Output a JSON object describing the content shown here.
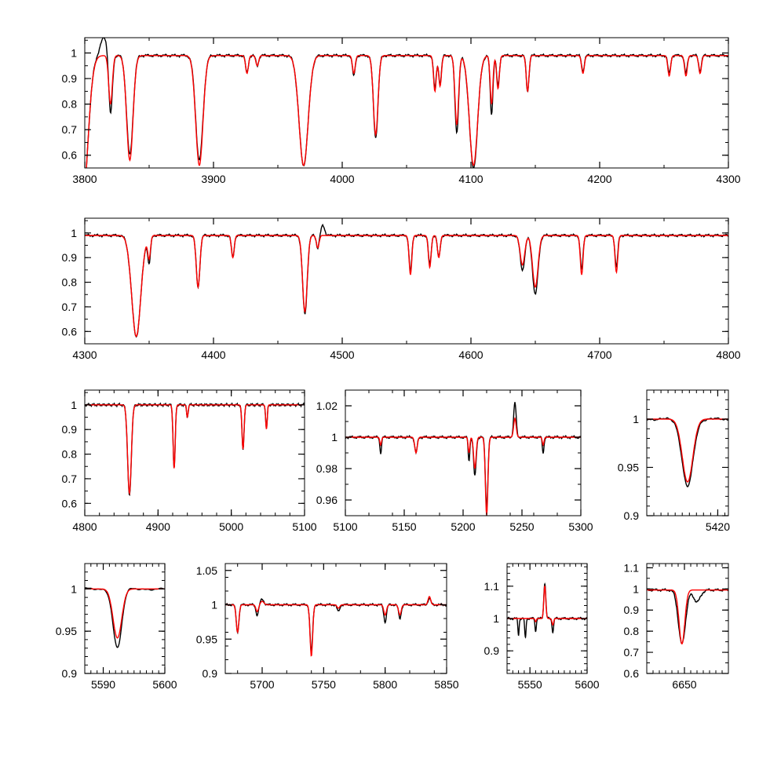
{
  "figure": {
    "observed_color": "#000000",
    "model_color": "#ff0000",
    "frame_color": "#000000",
    "background": "#ffffff"
  },
  "chart_data": [
    {
      "type": "line",
      "xlim": [
        3800,
        4300
      ],
      "ylim": [
        0.55,
        1.06
      ],
      "xticks": [
        3800,
        3900,
        4000,
        4100,
        4200,
        4300
      ],
      "xtick_labels": [
        "3800",
        "3900",
        "4000",
        "4100",
        "4200",
        "4300"
      ],
      "yticks": [
        0.6,
        0.7,
        0.8,
        0.9,
        1
      ],
      "ytick_labels": [
        "0.6",
        "0.7",
        "0.8",
        "0.9",
        "1"
      ],
      "continuum": 0.99,
      "lines": [
        [
          3798,
          0.4,
          6
        ],
        [
          3820,
          0.75,
          2
        ],
        [
          3835,
          0.6,
          3.5
        ],
        [
          3889,
          0.58,
          4
        ],
        [
          3926,
          0.92,
          1.5
        ],
        [
          3934,
          0.95,
          1.5
        ],
        [
          3970,
          0.56,
          5
        ],
        [
          4009,
          0.91,
          1.5
        ],
        [
          4026,
          0.67,
          2.5
        ],
        [
          4072,
          0.86,
          1.5
        ],
        [
          4076,
          0.88,
          1.5
        ],
        [
          4089,
          0.69,
          2
        ],
        [
          4102,
          0.55,
          4.5
        ],
        [
          4116,
          0.76,
          1.5
        ],
        [
          4121,
          0.87,
          1.5
        ],
        [
          4144,
          0.85,
          1.5
        ],
        [
          4187,
          0.93,
          1.5
        ],
        [
          4254,
          0.92,
          1.5
        ],
        [
          4267,
          0.92,
          1.5
        ],
        [
          4278,
          0.93,
          1.5
        ]
      ],
      "emission": [
        [
          3815,
          1.06,
          4
        ]
      ],
      "model_lines": [
        [
          3798,
          0.4,
          6
        ],
        [
          3820,
          0.8,
          2
        ],
        [
          3835,
          0.58,
          3.5
        ],
        [
          3889,
          0.56,
          4
        ],
        [
          3926,
          0.92,
          1.5
        ],
        [
          3934,
          0.95,
          1.5
        ],
        [
          3970,
          0.56,
          5
        ],
        [
          4009,
          0.92,
          1.5
        ],
        [
          4026,
          0.68,
          2.5
        ],
        [
          4072,
          0.85,
          1.5
        ],
        [
          4076,
          0.87,
          1.5
        ],
        [
          4089,
          0.72,
          2
        ],
        [
          4102,
          0.56,
          4.5
        ],
        [
          4116,
          0.8,
          1.5
        ],
        [
          4121,
          0.86,
          1.5
        ],
        [
          4144,
          0.85,
          1.5
        ],
        [
          4187,
          0.92,
          1.5
        ],
        [
          4254,
          0.91,
          1.5
        ],
        [
          4267,
          0.91,
          1.5
        ],
        [
          4278,
          0.92,
          1.5
        ]
      ],
      "model_emission": []
    },
    {
      "type": "line",
      "xlim": [
        4300,
        4800
      ],
      "ylim": [
        0.55,
        1.06
      ],
      "xticks": [
        4300,
        4400,
        4500,
        4600,
        4700,
        4800
      ],
      "xtick_labels": [
        "4300",
        "4400",
        "4500",
        "4600",
        "4700",
        "4800"
      ],
      "yticks": [
        0.6,
        0.7,
        0.8,
        0.9,
        1
      ],
      "ytick_labels": [
        "0.6",
        "0.7",
        "0.8",
        "0.9",
        "1"
      ],
      "continuum": 0.99,
      "lines": [
        [
          4340,
          0.58,
          5
        ],
        [
          4350,
          0.88,
          1.5
        ],
        [
          4388,
          0.78,
          2
        ],
        [
          4415,
          0.9,
          1.5
        ],
        [
          4471,
          0.67,
          2.5
        ],
        [
          4481,
          0.94,
          1.5
        ],
        [
          4553,
          0.84,
          1.5
        ],
        [
          4568,
          0.87,
          1.5
        ],
        [
          4575,
          0.9,
          1.5
        ],
        [
          4640,
          0.85,
          2.5
        ],
        [
          4650,
          0.75,
          3
        ],
        [
          4686,
          0.85,
          1.5
        ],
        [
          4713,
          0.86,
          1.5
        ]
      ],
      "emission": [
        [
          4485,
          1.03,
          2
        ]
      ],
      "model_lines": [
        [
          4340,
          0.58,
          5
        ],
        [
          4350,
          0.9,
          1.5
        ],
        [
          4388,
          0.78,
          2
        ],
        [
          4415,
          0.9,
          1.5
        ],
        [
          4471,
          0.68,
          2.5
        ],
        [
          4481,
          0.94,
          1.5
        ],
        [
          4553,
          0.83,
          1.5
        ],
        [
          4568,
          0.86,
          1.5
        ],
        [
          4575,
          0.9,
          1.5
        ],
        [
          4640,
          0.87,
          2.5
        ],
        [
          4650,
          0.78,
          3
        ],
        [
          4686,
          0.83,
          1.5
        ],
        [
          4713,
          0.84,
          1.5
        ]
      ],
      "model_emission": []
    },
    {
      "type": "line",
      "xlim": [
        4800,
        5100
      ],
      "ylim": [
        0.55,
        1.06
      ],
      "xticks": [
        4800,
        4900,
        5000,
        5100
      ],
      "xtick_labels": [
        "4800",
        "4900",
        "5000",
        "5100"
      ],
      "yticks": [
        0.6,
        0.7,
        0.8,
        0.9,
        1
      ],
      "ytick_labels": [
        "0.6",
        "0.7",
        "0.8",
        "0.9",
        "1"
      ],
      "continuum": 1.0,
      "lines": [
        [
          4861,
          0.63,
          3.5
        ],
        [
          4922,
          0.74,
          2
        ],
        [
          4940,
          0.95,
          1.5
        ],
        [
          5016,
          0.82,
          2
        ],
        [
          5048,
          0.9,
          1.5
        ]
      ],
      "emission": [],
      "model_lines": [
        [
          4861,
          0.64,
          3.5
        ],
        [
          4922,
          0.74,
          2
        ],
        [
          4940,
          0.95,
          1.5
        ],
        [
          5016,
          0.82,
          2
        ],
        [
          5048,
          0.9,
          1.5
        ]
      ],
      "model_emission": []
    },
    {
      "type": "line",
      "xlim": [
        5100,
        5300
      ],
      "ylim": [
        0.95,
        1.03
      ],
      "xticks": [
        5100,
        5150,
        5200,
        5250,
        5300
      ],
      "xtick_labels": [
        "5100",
        "5150",
        "5200",
        "5250",
        "5300"
      ],
      "yticks": [
        0.96,
        0.98,
        1,
        1.02
      ],
      "ytick_labels": [
        "0.96",
        "0.98",
        "1",
        "1.02"
      ],
      "continuum": 1.0,
      "lines": [
        [
          5130,
          0.99,
          1
        ],
        [
          5160,
          0.99,
          1.5
        ],
        [
          5205,
          0.985,
          1
        ],
        [
          5210,
          0.975,
          1.5
        ],
        [
          5220,
          0.955,
          1.5
        ],
        [
          5268,
          0.99,
          1
        ]
      ],
      "emission": [
        [
          5244,
          1.022,
          1.5
        ]
      ],
      "model_lines": [
        [
          5130,
          0.995,
          1
        ],
        [
          5160,
          0.99,
          1.5
        ],
        [
          5205,
          0.99,
          1
        ],
        [
          5210,
          0.98,
          1.5
        ],
        [
          5220,
          0.95,
          1.5
        ],
        [
          5268,
          0.995,
          1
        ]
      ],
      "model_emission": [
        [
          5244,
          1.012,
          1.5
        ]
      ]
    },
    {
      "type": "line",
      "xlim": [
        5400,
        5423
      ],
      "ylim": [
        0.9,
        1.03
      ],
      "xticks": [
        5420
      ],
      "xtick_labels": [
        "5420"
      ],
      "yticks": [
        0.9,
        0.95,
        1
      ],
      "ytick_labels": [
        "0.9",
        "0.95",
        "1"
      ],
      "continuum": 1.0,
      "lines": [
        [
          5411.5,
          0.93,
          2.2
        ]
      ],
      "emission": [],
      "model_lines": [
        [
          5411.5,
          0.935,
          2.1
        ]
      ],
      "model_emission": []
    },
    {
      "type": "line",
      "xlim": [
        5587,
        5600
      ],
      "ylim": [
        0.9,
        1.03
      ],
      "xticks": [
        5590,
        5600
      ],
      "xtick_labels": [
        "5590",
        "5600"
      ],
      "yticks": [
        0.9,
        0.95,
        1
      ],
      "ytick_labels": [
        "0.9",
        "0.95",
        "1"
      ],
      "continuum": 1.0,
      "lines": [
        [
          5592.3,
          0.93,
          1.0
        ]
      ],
      "emission": [],
      "model_lines": [
        [
          5592.3,
          0.942,
          1.0
        ]
      ],
      "model_emission": []
    },
    {
      "type": "line",
      "xlim": [
        5670,
        5850
      ],
      "ylim": [
        0.9,
        1.06
      ],
      "xticks": [
        5700,
        5750,
        5800,
        5850
      ],
      "xtick_labels": [
        "5700",
        "5750",
        "5800",
        "5850"
      ],
      "yticks": [
        0.9,
        0.95,
        1,
        1.05
      ],
      "ytick_labels": [
        "0.9",
        "0.95",
        "1",
        "1.05"
      ],
      "continuum": 1.0,
      "lines": [
        [
          5680,
          0.96,
          1.5
        ],
        [
          5696,
          0.985,
          1.5
        ],
        [
          5740,
          0.93,
          1.5
        ],
        [
          5762,
          0.99,
          1.5
        ],
        [
          5800,
          0.975,
          1.5
        ],
        [
          5812,
          0.98,
          1.5
        ]
      ],
      "emission": [
        [
          5836,
          1.01,
          1.5
        ],
        [
          5700,
          1.008,
          2
        ]
      ],
      "model_lines": [
        [
          5680,
          0.96,
          1.5
        ],
        [
          5696,
          0.99,
          1.5
        ],
        [
          5740,
          0.925,
          1.5
        ],
        [
          5762,
          0.995,
          1.5
        ],
        [
          5800,
          0.985,
          1.5
        ],
        [
          5812,
          0.985,
          1.5
        ]
      ],
      "model_emission": [
        [
          5836,
          1.012,
          1.5
        ],
        [
          5700,
          1.005,
          2
        ]
      ]
    },
    {
      "type": "line",
      "xlim": [
        5530,
        5600
      ],
      "ylim": [
        0.83,
        1.17
      ],
      "xticks": [
        5550,
        5600
      ],
      "xtick_labels": [
        "5550",
        "5600"
      ],
      "yticks": [
        0.9,
        1,
        1.1
      ],
      "ytick_labels": [
        "0.9",
        "1",
        "1.1"
      ],
      "continuum": 1.0,
      "lines": [
        [
          5540,
          0.95,
          0.8
        ],
        [
          5546,
          0.94,
          0.8
        ],
        [
          5555,
          0.96,
          0.8
        ],
        [
          5570,
          0.96,
          1
        ]
      ],
      "emission": [
        [
          5563,
          1.11,
          1.2
        ]
      ],
      "model_lines": [
        [
          5555,
          0.99,
          0.8
        ],
        [
          5570,
          0.98,
          1
        ]
      ],
      "model_emission": [
        [
          5563,
          1.1,
          1.2
        ]
      ]
    },
    {
      "type": "line",
      "xlim": [
        6620,
        6685
      ],
      "ylim": [
        0.6,
        1.12
      ],
      "xticks": [
        6650
      ],
      "xtick_labels": [
        "6650"
      ],
      "yticks": [
        0.6,
        0.7,
        0.8,
        0.9,
        1,
        1.1
      ],
      "ytick_labels": [
        "0.6",
        "0.7",
        "0.8",
        "0.9",
        "1",
        "1.1"
      ],
      "continuum": 0.995,
      "lines": [
        [
          6648,
          0.74,
          4
        ],
        [
          6660,
          0.94,
          4
        ]
      ],
      "emission": [],
      "model_lines": [
        [
          6648,
          0.74,
          3.2
        ]
      ],
      "model_emission": []
    }
  ]
}
